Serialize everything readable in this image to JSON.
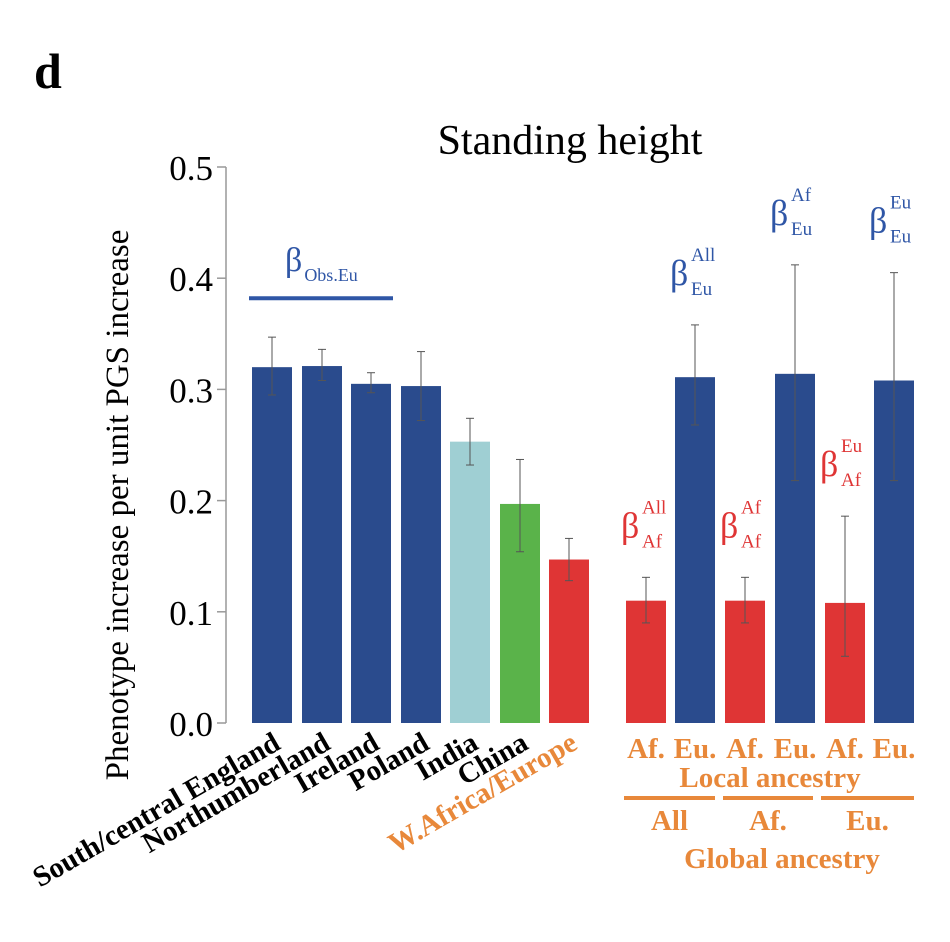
{
  "panel_label": "d",
  "chart_data": {
    "type": "bar",
    "title": "Standing height",
    "ylabel": "Phenotype increase per unit PGS increase",
    "xlabel": "",
    "ylim": [
      0,
      0.5
    ],
    "yticks": [
      "0.0",
      "0.1",
      "0.2",
      "0.3",
      "0.4",
      "0.5"
    ],
    "colors": {
      "european": "#2a4b8d",
      "india": "#9fcfd3",
      "china": "#5ab34a",
      "african": "#df3535",
      "orange_label": "#e8883a",
      "beta_blue": "#2f56a6",
      "beta_red": "#df3535"
    },
    "bars": [
      {
        "label": "South/central England",
        "value": 0.32,
        "err_low": 0.295,
        "err_high": 0.347,
        "color_key": "european"
      },
      {
        "label": "Northumberland",
        "value": 0.321,
        "err_low": 0.308,
        "err_high": 0.336,
        "color_key": "european"
      },
      {
        "label": "Ireland",
        "value": 0.305,
        "err_low": 0.297,
        "err_high": 0.315,
        "color_key": "european"
      },
      {
        "label": "Poland",
        "value": 0.303,
        "err_low": 0.272,
        "err_high": 0.334,
        "color_key": "european"
      },
      {
        "label": "India",
        "value": 0.253,
        "err_low": 0.232,
        "err_high": 0.274,
        "color_key": "india"
      },
      {
        "label": "China",
        "value": 0.197,
        "err_low": 0.154,
        "err_high": 0.237,
        "color_key": "china"
      },
      {
        "label": "W.Africa/Europe",
        "value": 0.147,
        "err_low": 0.128,
        "err_high": 0.166,
        "color_key": "african",
        "label_color": "orange"
      },
      {
        "label": "Af.",
        "value": 0.11,
        "err_low": 0.09,
        "err_high": 0.131,
        "color_key": "african",
        "group": 1,
        "beta": {
          "base": "β",
          "sup": "All",
          "sub": "Af"
        }
      },
      {
        "label": "Eu.",
        "value": 0.311,
        "err_low": 0.268,
        "err_high": 0.358,
        "color_key": "european",
        "group": 1,
        "beta": {
          "base": "β",
          "sup": "All",
          "sub": "Eu"
        }
      },
      {
        "label": "Af.",
        "value": 0.11,
        "err_low": 0.09,
        "err_high": 0.131,
        "color_key": "african",
        "group": 2,
        "beta": {
          "base": "β",
          "sup": "Af",
          "sub": "Af"
        }
      },
      {
        "label": "Eu.",
        "value": 0.314,
        "err_low": 0.218,
        "err_high": 0.412,
        "color_key": "european",
        "group": 2,
        "beta": {
          "base": "β",
          "sup": "Af",
          "sub": "Eu"
        }
      },
      {
        "label": "Af.",
        "value": 0.108,
        "err_low": 0.06,
        "err_high": 0.186,
        "color_key": "african",
        "group": 3,
        "beta": {
          "base": "β",
          "sup": "Eu",
          "sub": "Af"
        }
      },
      {
        "label": "Eu.",
        "value": 0.308,
        "err_low": 0.218,
        "err_high": 0.405,
        "color_key": "european",
        "group": 3,
        "beta": {
          "base": "β",
          "sup": "Eu",
          "sub": "Eu"
        }
      }
    ],
    "obs_annotation": {
      "base": "β",
      "sub": "Obs.Eu",
      "y_value": 0.382
    },
    "local_ancestry_label": "Local ancestry",
    "global_ancestry_label": "Global ancestry",
    "global_groups": [
      "All",
      "Af.",
      "Eu."
    ],
    "grid": false,
    "legend": "none"
  }
}
